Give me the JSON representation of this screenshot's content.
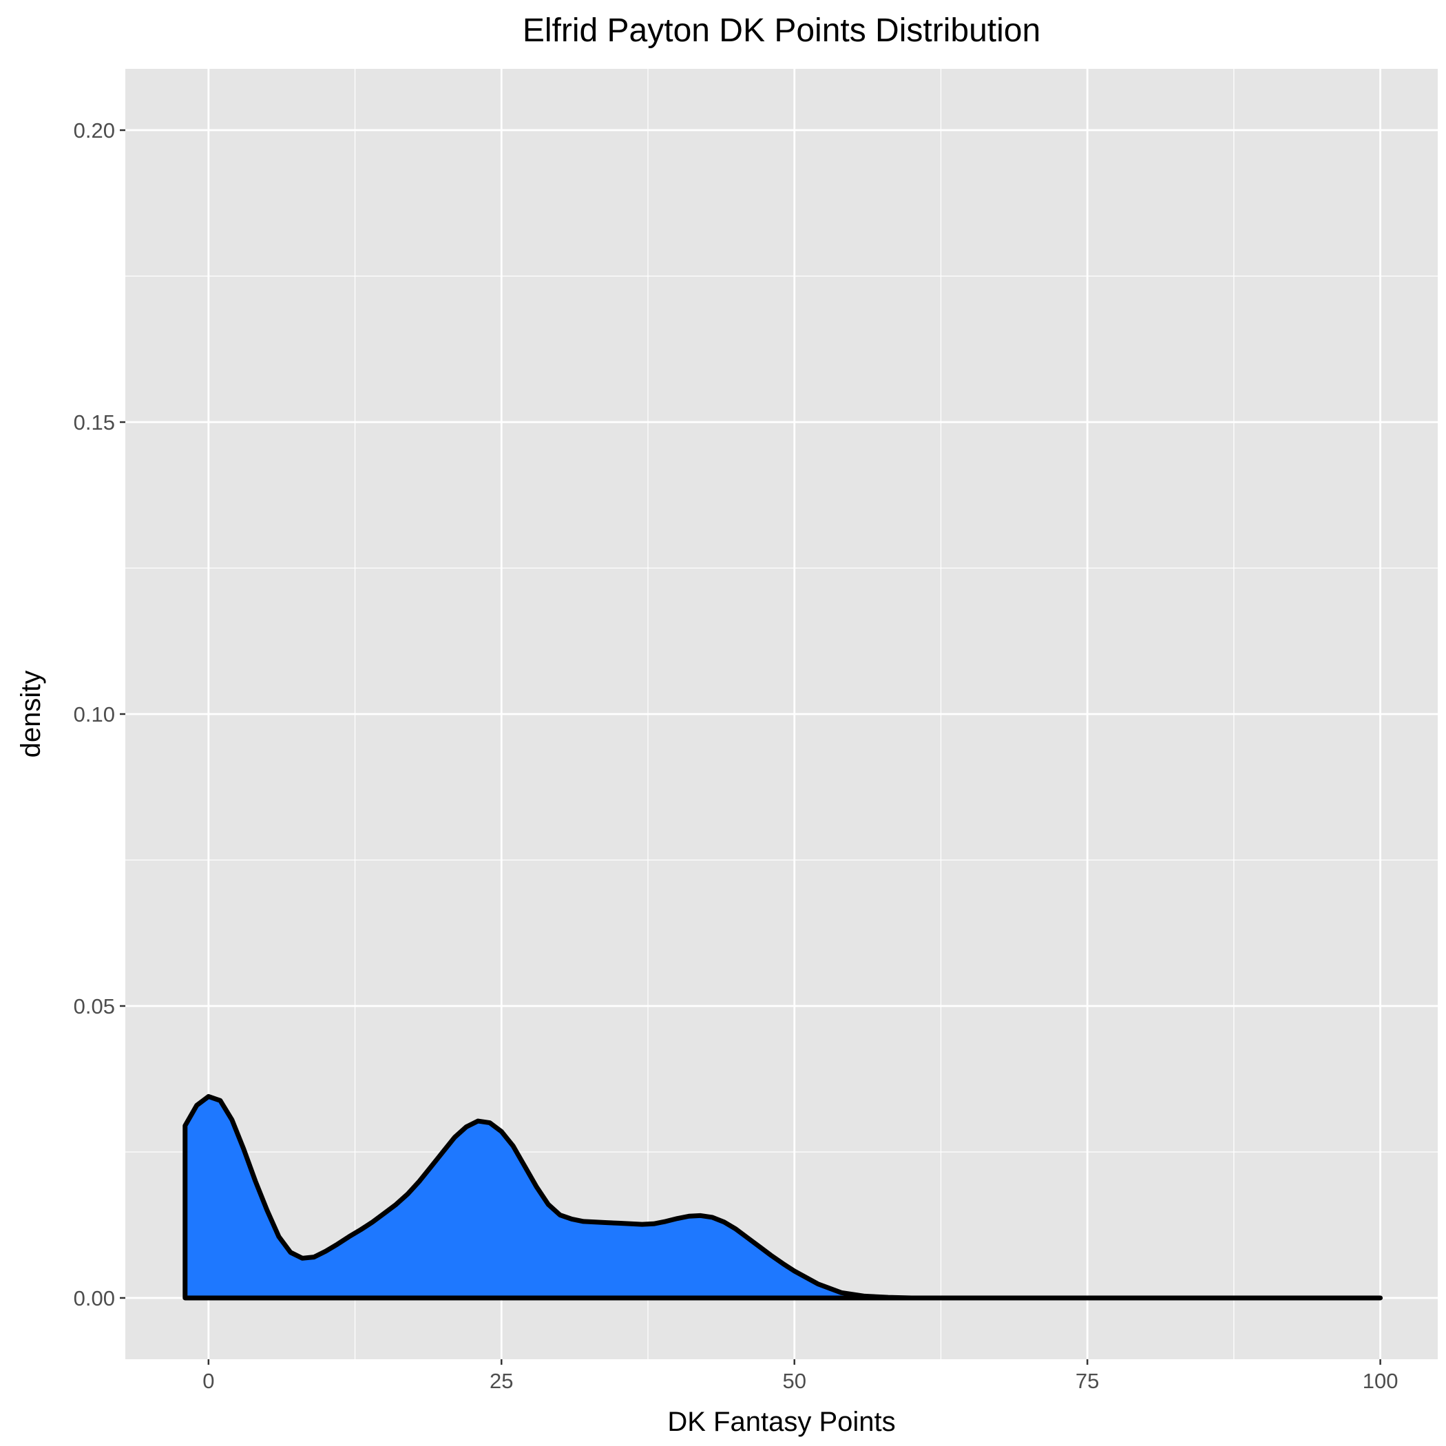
{
  "chart_data": {
    "type": "area",
    "title": "Elfrid Payton DK Points Distribution",
    "xlabel": "DK Fantasy Points",
    "ylabel": "density",
    "xlim": [
      -7.1,
      104.9
    ],
    "ylim": [
      -0.0105,
      0.2105
    ],
    "x_ticks": [
      0,
      25,
      50,
      75,
      100
    ],
    "x_tick_labels": [
      "0",
      "25",
      "50",
      "75",
      "100"
    ],
    "y_ticks": [
      0.0,
      0.05,
      0.1,
      0.15,
      0.2
    ],
    "y_tick_labels": [
      "0.00",
      "0.05",
      "0.10",
      "0.15",
      "0.20"
    ],
    "grid": true,
    "colors": {
      "fill": "#1e78ff",
      "line": "#000000",
      "panel": "#e5e5e5",
      "grid": "#ffffff"
    },
    "series": [
      {
        "x": [
          -2,
          -1,
          0,
          1,
          2,
          3,
          4,
          5,
          6,
          7,
          8,
          9,
          10,
          11,
          12,
          13,
          14,
          15,
          16,
          17,
          18,
          19,
          20,
          21,
          22,
          23,
          24,
          25,
          26,
          27,
          28,
          29,
          30,
          31,
          32,
          33,
          34,
          35,
          36,
          37,
          38,
          39,
          40,
          41,
          42,
          43,
          44,
          45,
          46,
          47,
          48,
          49,
          50,
          52,
          54,
          56,
          58,
          60,
          65,
          70,
          80,
          90,
          100
        ],
        "y": [
          0.0295,
          0.033,
          0.0345,
          0.0338,
          0.0305,
          0.0255,
          0.02,
          0.015,
          0.0105,
          0.0078,
          0.0068,
          0.007,
          0.008,
          0.0092,
          0.0105,
          0.0117,
          0.013,
          0.0145,
          0.016,
          0.0178,
          0.02,
          0.0225,
          0.025,
          0.0275,
          0.0293,
          0.0303,
          0.03,
          0.0285,
          0.026,
          0.0225,
          0.019,
          0.016,
          0.0142,
          0.0135,
          0.0131,
          0.013,
          0.0129,
          0.0128,
          0.0127,
          0.0126,
          0.0127,
          0.0131,
          0.0136,
          0.014,
          0.0141,
          0.0138,
          0.013,
          0.0118,
          0.0103,
          0.0088,
          0.0073,
          0.0059,
          0.0046,
          0.0024,
          0.0009,
          0.0003,
          0.0001,
          0.0,
          0.0,
          0.0,
          0.0,
          0.0,
          0.0
        ]
      }
    ]
  }
}
